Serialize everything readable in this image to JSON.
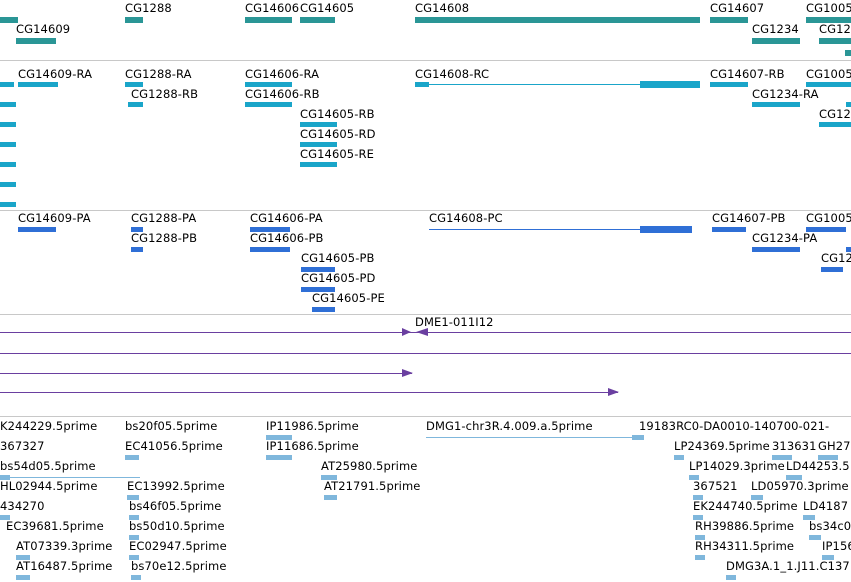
{
  "colors": {
    "gene": "#2a9696",
    "transcript": "#1aa5c9",
    "protein": "#2f6fd6",
    "clone": "#6a3fa0",
    "est": "#7fb7dc"
  },
  "genes": [
    {
      "name": "CG14609"
    },
    {
      "name": "CG1288"
    },
    {
      "name": "CG14606"
    },
    {
      "name": "CG14605"
    },
    {
      "name": "CG14608"
    },
    {
      "name": "CG14607"
    },
    {
      "name": "CG1234"
    },
    {
      "name": "CG1005"
    },
    {
      "name": "CG12"
    }
  ],
  "transcripts": [
    {
      "name": "CG14609-RA"
    },
    {
      "name": "CG1288-RA"
    },
    {
      "name": "CG1288-RB"
    },
    {
      "name": "CG14606-RA"
    },
    {
      "name": "CG14606-RB"
    },
    {
      "name": "CG14605-RB"
    },
    {
      "name": "CG14605-RD"
    },
    {
      "name": "CG14605-RE"
    },
    {
      "name": "CG14608-RC"
    },
    {
      "name": "CG14607-RB"
    },
    {
      "name": "CG1234-RA"
    },
    {
      "name": "CG1005"
    },
    {
      "name": "CG12"
    }
  ],
  "proteins": [
    {
      "name": "CG14609-PA"
    },
    {
      "name": "CG1288-PA"
    },
    {
      "name": "CG1288-PB"
    },
    {
      "name": "CG14606-PA"
    },
    {
      "name": "CG14606-PB"
    },
    {
      "name": "CG14605-PB"
    },
    {
      "name": "CG14605-PD"
    },
    {
      "name": "CG14605-PE"
    },
    {
      "name": "CG14608-PC"
    },
    {
      "name": "CG14607-PB"
    },
    {
      "name": "CG1234-PA"
    },
    {
      "name": "CG1005"
    },
    {
      "name": "CG12"
    }
  ],
  "clones": [
    {
      "name": "DME1-011I12"
    }
  ],
  "ests": [
    {
      "name": "K244229.5prime"
    },
    {
      "name": "367327"
    },
    {
      "name": "bs54d05.5prime"
    },
    {
      "name": "HL02944.5prime"
    },
    {
      "name": "434270"
    },
    {
      "name": "EC39681.5prime"
    },
    {
      "name": "AT07339.3prime"
    },
    {
      "name": "AT16487.5prime"
    },
    {
      "name": "bs20f05.5prime"
    },
    {
      "name": "EC41056.5prime"
    },
    {
      "name": "EC13992.5prime"
    },
    {
      "name": "bs46f05.5prime"
    },
    {
      "name": "bs50d10.5prime"
    },
    {
      "name": "EC02947.5prime"
    },
    {
      "name": "bs70e12.5prime"
    },
    {
      "name": "IP11986.5prime"
    },
    {
      "name": "IP11686.5prime"
    },
    {
      "name": "AT25980.5prime"
    },
    {
      "name": "AT21791.5prime"
    },
    {
      "name": "DMG1-chr3R.4.009.a.5prime"
    },
    {
      "name": "19183RC0-DA0010-140700-021-"
    },
    {
      "name": "LP24369.5prime"
    },
    {
      "name": "313631"
    },
    {
      "name": "GH27"
    },
    {
      "name": "LP14029.3prime"
    },
    {
      "name": "LD44253.5"
    },
    {
      "name": "367521"
    },
    {
      "name": "LD05970.3prime"
    },
    {
      "name": "EK244740.5prime"
    },
    {
      "name": "LD4187"
    },
    {
      "name": "RH39886.5prime"
    },
    {
      "name": "bs34c0"
    },
    {
      "name": "RH34311.5prime"
    },
    {
      "name": "IP156"
    },
    {
      "name": "DMG3A.1_1.J11.C137"
    }
  ]
}
